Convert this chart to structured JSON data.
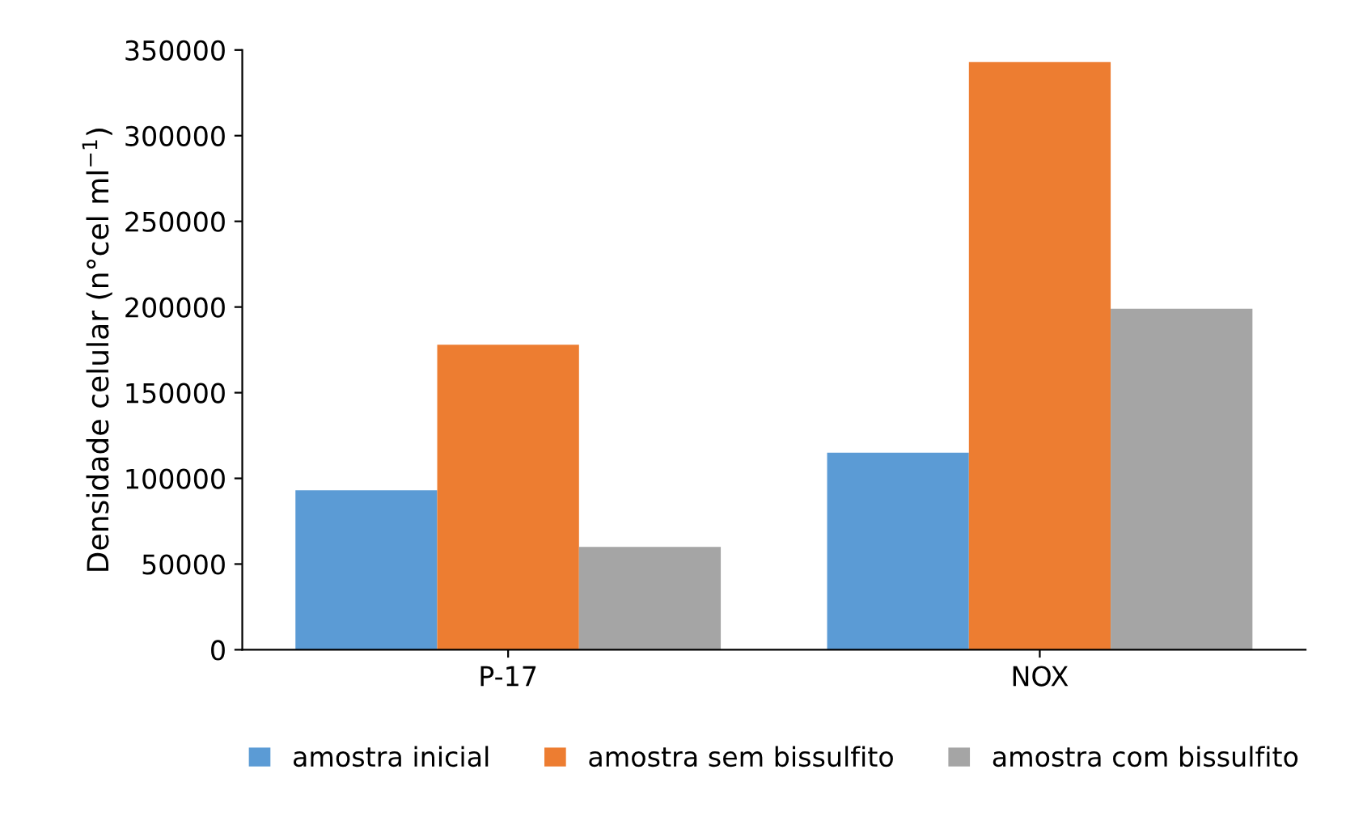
{
  "chart_data": {
    "type": "bar",
    "ylabel": "Densidade celular (n°cel ml$^{−1}$)",
    "categories": [
      "P-17",
      "NOX"
    ],
    "series": [
      {
        "name": "amostra inicial",
        "color": "#5b9bd5",
        "values": [
          93000,
          115000
        ]
      },
      {
        "name": "amostra sem bissulfito",
        "color": "#ed7d31",
        "values": [
          178000,
          343000
        ]
      },
      {
        "name": "amostra com bissulfito",
        "color": "#a5a5a5",
        "values": [
          60000,
          199000
        ]
      }
    ],
    "ylim": [
      0,
      350000
    ],
    "yticks": [
      0,
      50000,
      100000,
      150000,
      200000,
      250000,
      300000,
      350000
    ],
    "grid": false,
    "legend": "bottom"
  }
}
